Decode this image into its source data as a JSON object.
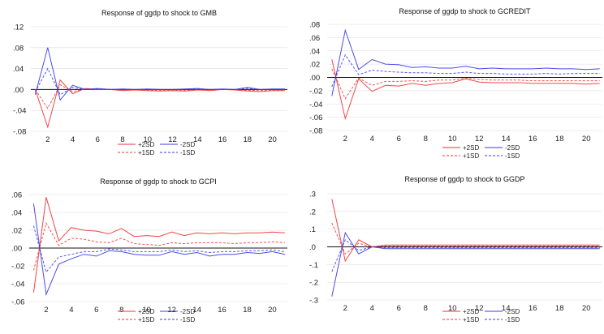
{
  "colors": {
    "red": "#ee3333",
    "blue": "#3838e8",
    "zero_line": "#111111",
    "grid": "#dddddd"
  },
  "chart_data": [
    {
      "type": "line",
      "title": "Response of ggdp to shock to GMB",
      "x": [
        1,
        2,
        3,
        4,
        5,
        6,
        7,
        8,
        9,
        10,
        11,
        12,
        13,
        14,
        15,
        16,
        17,
        18,
        19,
        20,
        21
      ],
      "xticks": [
        2,
        4,
        6,
        8,
        10,
        12,
        14,
        16,
        18,
        20
      ],
      "yticks": [
        0.12,
        0.08,
        0.04,
        0.0,
        -0.04,
        -0.08
      ],
      "ytick_labels": [
        ".12",
        ".08",
        ".04",
        ".00",
        "-.04",
        "-.08"
      ],
      "ylim": [
        -0.08,
        0.12
      ],
      "series": [
        {
          "name": "+2SD",
          "color": "red",
          "dash": false,
          "values": [
            0.0,
            -0.072,
            0.018,
            -0.008,
            0.002,
            0.0,
            0.0,
            -0.002,
            -0.001,
            -0.002,
            -0.003,
            -0.002,
            -0.003,
            -0.001,
            -0.002,
            0.0,
            -0.001,
            -0.003,
            -0.004,
            -0.002,
            -0.002
          ]
        },
        {
          "name": "+1SD",
          "color": "red",
          "dash": true,
          "values": [
            0.0,
            -0.036,
            0.009,
            -0.004,
            0.001,
            0.0,
            0.0,
            -0.001,
            0.0,
            -0.001,
            -0.0015,
            -0.001,
            -0.0015,
            0.0,
            -0.001,
            0.0,
            0.0,
            -0.0015,
            -0.002,
            -0.001,
            -0.001
          ]
        },
        {
          "name": "-2SD",
          "color": "blue",
          "dash": false,
          "values": [
            -0.01,
            0.08,
            -0.02,
            0.008,
            0.0,
            0.002,
            0.0,
            0.001,
            0.0,
            0.001,
            0.0,
            0.0,
            0.001,
            0.002,
            0.0,
            0.001,
            0.0,
            0.004,
            0.0,
            0.001,
            0.001
          ]
        },
        {
          "name": "-1SD",
          "color": "blue",
          "dash": true,
          "values": [
            -0.005,
            0.04,
            -0.01,
            0.004,
            0.0,
            0.001,
            0.0,
            0.0005,
            0.0,
            0.0005,
            0.0,
            0.0,
            0.0005,
            0.001,
            0.0,
            0.0005,
            0.0,
            0.002,
            0.0,
            0.0005,
            0.0005
          ]
        }
      ]
    },
    {
      "type": "line",
      "title": "Response of ggdp to shock to GCREDIT",
      "x": [
        1,
        2,
        3,
        4,
        5,
        6,
        7,
        8,
        9,
        10,
        11,
        12,
        13,
        14,
        15,
        16,
        17,
        18,
        19,
        20,
        21
      ],
      "xticks": [
        2,
        4,
        6,
        8,
        10,
        12,
        14,
        16,
        18,
        20
      ],
      "yticks": [
        0.08,
        0.06,
        0.04,
        0.02,
        0.0,
        -0.02,
        -0.04,
        -0.06,
        -0.08
      ],
      "ytick_labels": [
        ".08",
        ".06",
        ".04",
        ".02",
        ".00",
        "-.02",
        "-.04",
        "-.06",
        "-.08"
      ],
      "ylim": [
        -0.08,
        0.08
      ],
      "series": [
        {
          "name": "+2SD",
          "color": "red",
          "dash": false,
          "values": [
            0.027,
            -0.062,
            -0.002,
            -0.021,
            -0.012,
            -0.013,
            -0.009,
            -0.012,
            -0.009,
            -0.008,
            -0.002,
            -0.007,
            -0.008,
            -0.008,
            -0.008,
            -0.009,
            -0.009,
            -0.009,
            -0.009,
            -0.01,
            -0.009
          ]
        },
        {
          "name": "+1SD",
          "color": "red",
          "dash": true,
          "values": [
            0.013,
            -0.032,
            -0.001,
            -0.012,
            -0.006,
            -0.006,
            -0.005,
            -0.006,
            -0.004,
            -0.004,
            -0.001,
            -0.003,
            -0.004,
            -0.004,
            -0.004,
            -0.005,
            -0.005,
            -0.005,
            -0.005,
            -0.005,
            -0.005
          ]
        },
        {
          "name": "-2SD",
          "color": "blue",
          "dash": false,
          "values": [
            -0.028,
            0.071,
            0.012,
            0.027,
            0.02,
            0.019,
            0.015,
            0.016,
            0.014,
            0.014,
            0.017,
            0.013,
            0.014,
            0.013,
            0.013,
            0.013,
            0.014,
            0.013,
            0.013,
            0.012,
            0.013
          ]
        },
        {
          "name": "-1SD",
          "color": "blue",
          "dash": true,
          "values": [
            -0.014,
            0.034,
            0.004,
            0.011,
            0.009,
            0.008,
            0.007,
            0.007,
            0.006,
            0.006,
            0.008,
            0.006,
            0.006,
            0.005,
            0.005,
            0.005,
            0.006,
            0.005,
            0.006,
            0.006,
            0.006
          ]
        }
      ]
    },
    {
      "type": "line",
      "title": "Response of ggdp to shock to GCPI",
      "x": [
        1,
        2,
        3,
        4,
        5,
        6,
        7,
        8,
        9,
        10,
        11,
        12,
        13,
        14,
        15,
        16,
        17,
        18,
        19,
        20,
        21
      ],
      "xticks": [
        2,
        4,
        6,
        8,
        10,
        12,
        14,
        16,
        18,
        20
      ],
      "yticks": [
        0.06,
        0.04,
        0.02,
        0.0,
        -0.02,
        -0.04,
        -0.06
      ],
      "ytick_labels": [
        ".06",
        ".04",
        ".02",
        ".00",
        "-.02",
        "-.04",
        "-.06"
      ],
      "ylim": [
        -0.06,
        0.06
      ],
      "series": [
        {
          "name": "+2SD",
          "color": "red",
          "dash": false,
          "values": [
            -0.05,
            0.057,
            0.008,
            0.023,
            0.02,
            0.019,
            0.016,
            0.022,
            0.013,
            0.014,
            0.013,
            0.018,
            0.014,
            0.017,
            0.016,
            0.017,
            0.016,
            0.017,
            0.017,
            0.018,
            0.017
          ]
        },
        {
          "name": "+1SD",
          "color": "red",
          "dash": true,
          "values": [
            -0.025,
            0.028,
            0.003,
            0.011,
            0.01,
            0.007,
            0.006,
            0.011,
            0.005,
            0.004,
            0.003,
            0.006,
            0.005,
            0.006,
            0.006,
            0.006,
            0.005,
            0.006,
            0.006,
            0.007,
            0.006
          ]
        },
        {
          "name": "-2SD",
          "color": "blue",
          "dash": false,
          "values": [
            0.05,
            -0.052,
            -0.018,
            -0.012,
            -0.007,
            -0.009,
            -0.003,
            -0.004,
            -0.007,
            -0.008,
            -0.008,
            -0.004,
            -0.007,
            -0.005,
            -0.009,
            -0.007,
            -0.007,
            -0.005,
            -0.006,
            -0.004,
            -0.007
          ]
        },
        {
          "name": "-1SD",
          "color": "blue",
          "dash": true,
          "values": [
            0.025,
            -0.027,
            -0.01,
            -0.007,
            -0.004,
            -0.004,
            -0.001,
            -0.002,
            -0.004,
            -0.004,
            -0.004,
            -0.002,
            -0.004,
            -0.003,
            -0.005,
            -0.004,
            -0.004,
            -0.003,
            -0.003,
            -0.002,
            -0.004
          ]
        }
      ]
    },
    {
      "type": "line",
      "title": "Response of ggdp to shock to GGDP",
      "x": [
        1,
        2,
        3,
        4,
        5,
        6,
        7,
        8,
        9,
        10,
        11,
        12,
        13,
        14,
        15,
        16,
        17,
        18,
        19,
        20,
        21
      ],
      "xticks": [
        2,
        4,
        6,
        8,
        10,
        12,
        14,
        16,
        18,
        20
      ],
      "yticks": [
        0.3,
        0.2,
        0.1,
        0.0,
        -0.1,
        -0.2,
        -0.3
      ],
      "ytick_labels": [
        ".3",
        ".2",
        ".1",
        ".0",
        "-.1",
        "-.2",
        "-.3"
      ],
      "ylim": [
        -0.3,
        0.3
      ],
      "series": [
        {
          "name": "+2SD",
          "color": "red",
          "dash": false,
          "values": [
            0.27,
            -0.08,
            0.04,
            0.0,
            0.01,
            0.01,
            0.01,
            0.01,
            0.01,
            0.01,
            0.01,
            0.01,
            0.01,
            0.01,
            0.01,
            0.01,
            0.01,
            0.01,
            0.01,
            0.01,
            0.01
          ]
        },
        {
          "name": "+1SD",
          "color": "red",
          "dash": true,
          "values": [
            0.135,
            -0.04,
            0.02,
            0.0,
            0.005,
            0.005,
            0.005,
            0.005,
            0.005,
            0.005,
            0.005,
            0.005,
            0.005,
            0.005,
            0.005,
            0.005,
            0.005,
            0.005,
            0.005,
            0.005,
            0.005
          ]
        },
        {
          "name": "-2SD",
          "color": "blue",
          "dash": false,
          "values": [
            -0.28,
            0.08,
            -0.04,
            0.0,
            -0.01,
            -0.01,
            -0.01,
            -0.01,
            -0.01,
            -0.01,
            -0.01,
            -0.01,
            -0.01,
            -0.01,
            -0.01,
            -0.01,
            -0.01,
            -0.01,
            -0.01,
            -0.01,
            -0.01
          ]
        },
        {
          "name": "-1SD",
          "color": "blue",
          "dash": true,
          "values": [
            -0.14,
            0.04,
            -0.02,
            0.0,
            -0.005,
            -0.005,
            -0.005,
            -0.005,
            -0.005,
            -0.005,
            -0.005,
            -0.005,
            -0.005,
            -0.005,
            -0.005,
            -0.005,
            -0.005,
            -0.005,
            -0.005,
            -0.005,
            -0.005
          ]
        }
      ]
    }
  ]
}
